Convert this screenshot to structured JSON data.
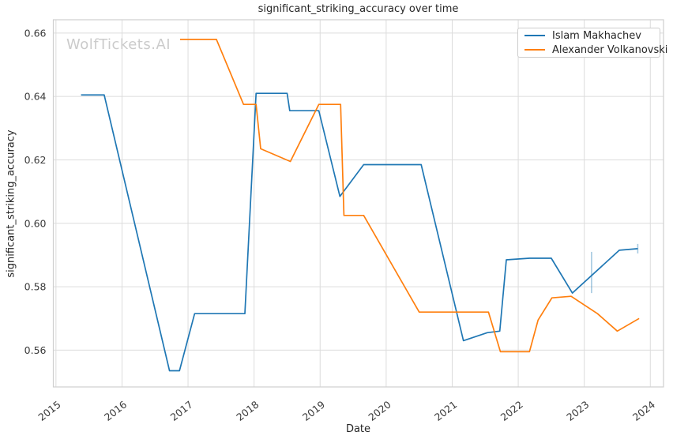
{
  "watermark": "WolfTickets.AI",
  "chart_data": {
    "type": "line",
    "title": "significant_striking_accuracy over time",
    "xlabel": "Date",
    "ylabel": "significant_striking_accuracy",
    "x_ticks": [
      2015,
      2016,
      2017,
      2018,
      2019,
      2020,
      2021,
      2022,
      2023,
      2024
    ],
    "y_tick_labels": [
      "0.56",
      "0.58",
      "0.60",
      "0.62",
      "0.64",
      "0.66"
    ],
    "xlim": [
      2014.96,
      2024.2
    ],
    "ylim": [
      0.5484,
      0.6642
    ],
    "grid": true,
    "legend_position": "upper right",
    "series": [
      {
        "name": "Islam Makhachev",
        "color": "#1f77b4",
        "x": [
          2015.38,
          2015.73,
          2016.72,
          2016.87,
          2017.1,
          2017.86,
          2018.03,
          2018.5,
          2018.54,
          2018.98,
          2019.3,
          2019.66,
          2020.53,
          2021.17,
          2021.53,
          2021.72,
          2021.82,
          2022.17,
          2022.5,
          2022.82,
          2023.53,
          2023.81
        ],
        "y": [
          0.6405,
          0.6405,
          0.5535,
          0.5535,
          0.5715,
          0.5715,
          0.641,
          0.641,
          0.6355,
          0.6355,
          0.6085,
          0.6185,
          0.6185,
          0.563,
          0.5655,
          0.566,
          0.5885,
          0.589,
          0.589,
          0.578,
          0.5915,
          0.592
        ]
      },
      {
        "name": "Alexander Volkanovski",
        "color": "#ff7f0e",
        "x": [
          2016.88,
          2017.43,
          2017.84,
          2018.03,
          2018.1,
          2018.55,
          2018.98,
          2019.31,
          2019.36,
          2019.66,
          2020.5,
          2021.55,
          2021.73,
          2022.17,
          2022.3,
          2022.51,
          2022.8,
          2023.2,
          2023.5,
          2023.83
        ],
        "y": [
          0.658,
          0.658,
          0.6375,
          0.6375,
          0.6235,
          0.6195,
          0.6375,
          0.6375,
          0.6025,
          0.6025,
          0.572,
          0.572,
          0.5595,
          0.5595,
          0.5695,
          0.5765,
          0.577,
          0.5715,
          0.566,
          0.57
        ]
      }
    ],
    "error_bars": [
      {
        "series": "Islam Makhachev",
        "x": 2023.11,
        "y_low": 0.578,
        "y_high": 0.591
      },
      {
        "series": "Islam Makhachev",
        "x": 2023.81,
        "y_low": 0.5905,
        "y_high": 0.5935
      }
    ],
    "error_bar_color": "rgba(31,119,180,0.4)",
    "grid_color": "#dcdcdc",
    "spine_color": "#cfcfcf",
    "tick_color": "#3a3a3a"
  }
}
